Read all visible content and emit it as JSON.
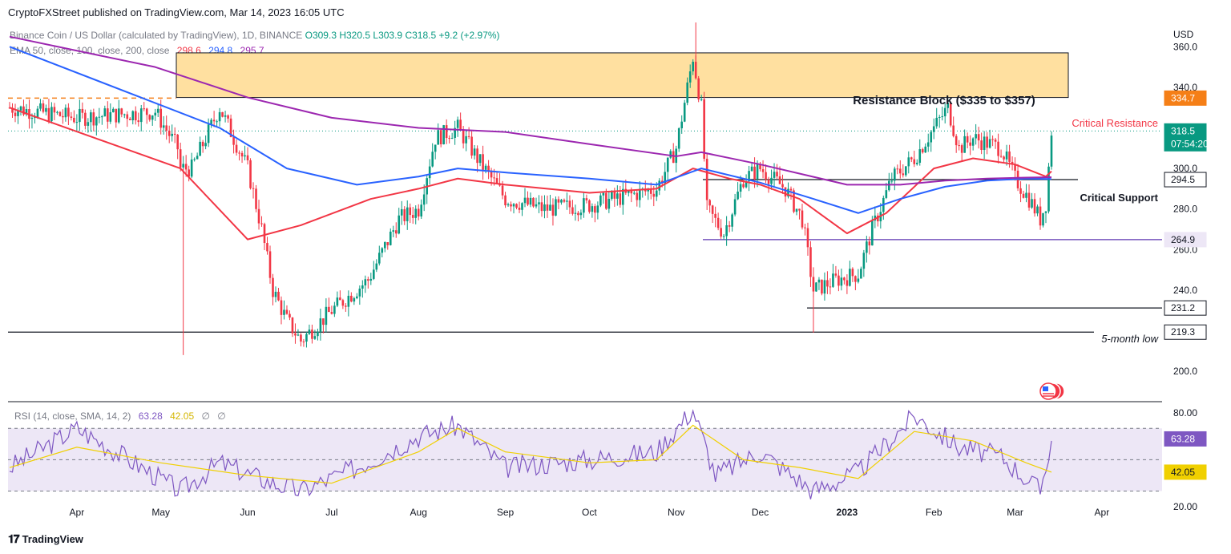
{
  "header": {
    "publisher": "CryptoFXStreet published on TradingView.com, Mar 14, 2023 16:05 UTC"
  },
  "legend": {
    "symbol": "Binance Coin / US Dollar (calculated by TradingView), 1D, BINANCE",
    "open": "O309.3",
    "high": "H320.5",
    "low": "L303.9",
    "close": "C318.5",
    "change": "+9.2 (+2.97%)",
    "ema_params": "EMA 50, close, 100, close, 200, close",
    "ema50_value": "298.6",
    "ema100_value": "294.8",
    "ema200_value": "295.7"
  },
  "rsi_legend": {
    "params": "RSI (14, close, SMA, 14, 2)",
    "rsi_value": "63.28",
    "sma_value": "42.05",
    "extra1": "∅",
    "extra2": "∅"
  },
  "footer": {
    "brand": "TradingView"
  },
  "price_axis": {
    "currency": "USD",
    "ticks": [
      "360.0",
      "340.0",
      "300.0",
      "280.0",
      "260.0",
      "240.0",
      "200.0"
    ]
  },
  "rsi_axis": {
    "ticks": [
      "80.00",
      "20.00"
    ]
  },
  "time_axis": {
    "labels": [
      "Apr",
      "May",
      "Jun",
      "Jul",
      "Aug",
      "Sep",
      "Oct",
      "Nov",
      "Dec",
      "2023",
      "Feb",
      "Mar",
      "Apr"
    ]
  },
  "annotations": {
    "resistance_block": "Resistance Block ($335 to $357)",
    "critical_resistance": "Critical Resistance",
    "critical_support": "Critical Support",
    "five_month_low": "5-month low"
  },
  "price_tags": {
    "critical_resistance": "334.7",
    "last_price": "318.5",
    "countdown": "07:54:20",
    "critical_support": "294.5",
    "level_264": "264.9",
    "level_231": "231.2",
    "five_month_low": "219.3",
    "rsi_value": "63.28",
    "rsi_sma": "42.05"
  },
  "colors": {
    "up": "#089981",
    "down": "#f23645",
    "ema50": "#f23645",
    "ema100": "#2962ff",
    "ema200": "#9c27b0",
    "rsi": "#7e57c2",
    "rsi_sma": "#f0d000",
    "resistance_block_fill": "#ffe0a0",
    "critical_resistance_tag": "#f57f17",
    "last_price_tag": "#089981",
    "level_line_purple": "#5e35b1"
  },
  "chart_data": {
    "type": "candlestick",
    "title": "Binance Coin / US Dollar (calculated by TradingView), 1D, BINANCE",
    "ylabel": "USD",
    "ylim": [
      185,
      372
    ],
    "x_labels": [
      "Apr",
      "May",
      "Jun",
      "Jul",
      "Aug",
      "Sep",
      "Oct",
      "Nov",
      "Dec",
      "2023",
      "Feb",
      "Mar",
      "Apr"
    ],
    "price_path": [
      [
        "2023-03-08",
        330
      ],
      [
        "2023-04-01",
        325
      ],
      [
        "2023-04-29",
        328
      ],
      [
        "2023-05-07",
        310
      ],
      [
        "2023-05-08",
        300
      ],
      [
        "2023-05-12",
        300
      ],
      [
        "2023-05-22",
        330
      ],
      [
        "2023-06-01",
        300
      ],
      [
        "2023-06-06",
        270
      ],
      [
        "2023-06-10",
        240
      ],
      [
        "2023-06-15",
        225
      ],
      [
        "2023-06-20",
        215
      ],
      [
        "2023-07-01",
        230
      ],
      [
        "2023-07-14",
        245
      ],
      [
        "2023-07-25",
        275
      ],
      [
        "2023-08-01",
        280
      ],
      [
        "2023-08-07",
        315
      ],
      [
        "2023-08-15",
        320
      ],
      [
        "2023-08-22",
        305
      ],
      [
        "2023-09-01",
        285
      ],
      [
        "2023-09-15",
        280
      ],
      [
        "2023-10-01",
        282
      ],
      [
        "2023-10-10",
        285
      ],
      [
        "2023-10-25",
        290
      ],
      [
        "2023-11-01",
        310
      ],
      [
        "2023-11-07",
        355
      ],
      [
        "2023-11-10",
        330
      ],
      [
        "2023-11-12",
        280
      ],
      [
        "2023-11-18",
        268
      ],
      [
        "2023-11-25",
        295
      ],
      [
        "2023-12-01",
        300
      ],
      [
        "2023-12-10",
        290
      ],
      [
        "2023-12-16",
        275
      ],
      [
        "2023-12-20",
        240
      ],
      [
        "2023-12-28",
        245
      ],
      [
        "2024-01-05",
        248
      ],
      [
        "2024-01-10",
        270
      ],
      [
        "2024-01-17",
        295
      ],
      [
        "2024-01-25",
        305
      ],
      [
        "2024-02-01",
        320
      ],
      [
        "2024-02-06",
        330
      ],
      [
        "2024-02-10",
        310
      ],
      [
        "2024-02-15",
        315
      ],
      [
        "2024-02-25",
        310
      ],
      [
        "2024-03-01",
        295
      ],
      [
        "2024-03-06",
        285
      ],
      [
        "2024-03-10",
        275
      ],
      [
        "2024-03-12",
        283
      ],
      [
        "2024-03-14",
        318.5
      ]
    ],
    "series": [
      {
        "name": "EMA 50",
        "x": [
          "2023-03-08",
          "2023-05-08",
          "2023-06-01",
          "2023-06-20",
          "2023-07-15",
          "2023-08-01",
          "2023-08-15",
          "2023-09-01",
          "2023-10-01",
          "2023-10-25",
          "2023-11-07",
          "2023-11-20",
          "2023-12-01",
          "2023-12-15",
          "2024-01-01",
          "2024-01-15",
          "2024-02-01",
          "2024-02-15",
          "2024-03-01",
          "2024-03-12",
          "2024-03-14"
        ],
        "values": [
          330,
          300,
          265,
          272,
          285,
          290,
          295,
          292,
          288,
          290,
          300,
          295,
          292,
          285,
          268,
          278,
          300,
          305,
          302,
          296,
          298.6
        ]
      },
      {
        "name": "EMA 100",
        "x": [
          "2023-03-08",
          "2023-05-22",
          "2023-06-15",
          "2023-07-10",
          "2023-08-01",
          "2023-08-15",
          "2023-09-01",
          "2023-10-01",
          "2023-10-25",
          "2023-11-10",
          "2023-12-01",
          "2023-12-20",
          "2024-01-05",
          "2024-01-20",
          "2024-02-05",
          "2024-02-20",
          "2024-03-05",
          "2024-03-14"
        ],
        "values": [
          360,
          320,
          300,
          292,
          296,
          300,
          298,
          295,
          292,
          300,
          293,
          285,
          278,
          285,
          291,
          294,
          295,
          294.8
        ]
      },
      {
        "name": "EMA 200",
        "x": [
          "2023-03-08",
          "2023-04-29",
          "2023-06-01",
          "2023-07-01",
          "2023-08-01",
          "2023-09-01",
          "2023-10-01",
          "2023-11-01",
          "2023-11-10",
          "2023-12-01",
          "2024-01-01",
          "2024-01-20",
          "2024-02-05",
          "2024-02-20",
          "2024-03-05",
          "2024-03-14"
        ],
        "values": [
          365,
          350,
          335,
          325,
          320,
          318,
          312,
          306,
          308,
          302,
          292,
          292,
          294,
          295,
          295.5,
          295.7
        ]
      }
    ],
    "horizontal_levels": [
      {
        "label": "Critical Resistance",
        "value": 334.7
      },
      {
        "label": "Critical Support",
        "value": 294.5
      },
      {
        "label": "",
        "value": 264.9
      },
      {
        "label": "",
        "value": 231.2
      },
      {
        "label": "5-month low",
        "value": 219.3
      }
    ],
    "zones": [
      {
        "label": "Resistance Block ($335 to $357)",
        "low": 335,
        "high": 357
      }
    ],
    "rsi": {
      "name": "RSI (14, close, SMA, 14, 2)",
      "ylim": [
        20,
        85
      ],
      "bands": [
        70,
        30
      ],
      "last_rsi": 63.28,
      "last_sma": 42.05,
      "rsi_path": [
        [
          "2023-03-08",
          45
        ],
        [
          "2023-04-01",
          70
        ],
        [
          "2023-04-15",
          55
        ],
        [
          "2023-05-08",
          30
        ],
        [
          "2023-05-22",
          48
        ],
        [
          "2023-06-10",
          35
        ],
        [
          "2023-06-20",
          30
        ],
        [
          "2023-07-10",
          45
        ],
        [
          "2023-08-01",
          65
        ],
        [
          "2023-08-15",
          72
        ],
        [
          "2023-09-01",
          45
        ],
        [
          "2023-10-01",
          50
        ],
        [
          "2023-10-25",
          55
        ],
        [
          "2023-11-07",
          82
        ],
        [
          "2023-11-15",
          40
        ],
        [
          "2023-12-01",
          55
        ],
        [
          "2023-12-20",
          30
        ],
        [
          "2024-01-05",
          42
        ],
        [
          "2024-01-25",
          78
        ],
        [
          "2024-02-10",
          58
        ],
        [
          "2024-02-25",
          52
        ],
        [
          "2024-03-10",
          30
        ],
        [
          "2024-03-14",
          63.28
        ]
      ],
      "sma_path": [
        [
          "2023-03-08",
          45
        ],
        [
          "2023-04-01",
          58
        ],
        [
          "2023-05-01",
          48
        ],
        [
          "2023-06-01",
          40
        ],
        [
          "2023-07-01",
          35
        ],
        [
          "2023-08-01",
          55
        ],
        [
          "2023-08-15",
          70
        ],
        [
          "2023-09-01",
          55
        ],
        [
          "2023-10-01",
          48
        ],
        [
          "2023-10-25",
          50
        ],
        [
          "2023-11-07",
          72
        ],
        [
          "2023-11-25",
          50
        ],
        [
          "2023-12-15",
          45
        ],
        [
          "2024-01-05",
          38
        ],
        [
          "2024-01-25",
          68
        ],
        [
          "2024-02-15",
          62
        ],
        [
          "2024-03-05",
          48
        ],
        [
          "2024-03-14",
          42.05
        ]
      ]
    }
  }
}
